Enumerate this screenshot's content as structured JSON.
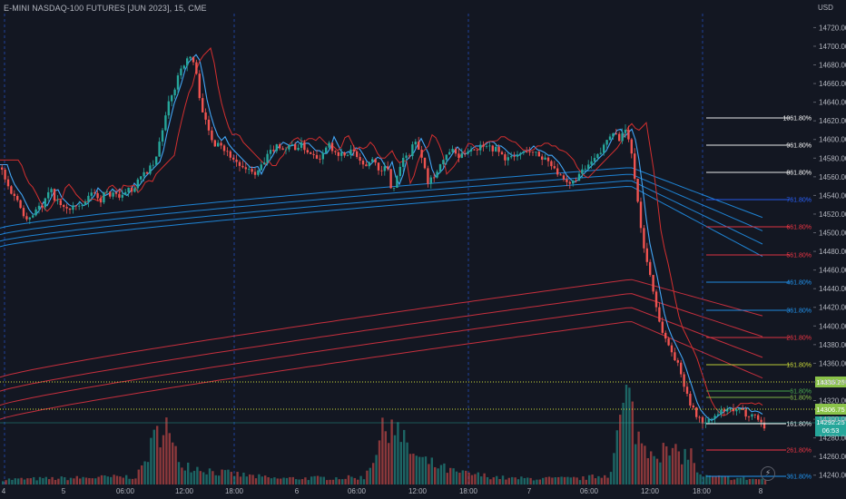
{
  "header": {
    "title": "E-MINI NASDAQ-100 FUTURES [JUN 2023], 15, CME",
    "currency": "USD"
  },
  "icons": {
    "replay": "lightning-icon"
  },
  "colors": {
    "background": "#131722",
    "up": "#26a69a",
    "down": "#ef5350",
    "blue_band": "#2196f3",
    "red_band": "#f23645",
    "grid_dash": "#2962ff",
    "price_pill": "#26a69a",
    "level_pill": "#8bc34a"
  },
  "chart_data": {
    "type": "candlestick",
    "title": "E-MINI NASDAQ-100 FUTURES [JUN 2023], 15, CME",
    "y_axis": {
      "unit": "USD",
      "range": [
        14230,
        14735
      ],
      "tick_labels": [
        "14240.00",
        "14260.00",
        "14280.00",
        "14300.00",
        "14320.00",
        "14340.00",
        "14360.00",
        "14380.00",
        "14400.00",
        "14420.00",
        "14440.00",
        "14460.00",
        "14480.00",
        "14500.00",
        "14520.00",
        "14540.00",
        "14560.00",
        "14580.00",
        "14600.00",
        "14620.00",
        "14640.00",
        "14660.00",
        "14680.00",
        "14700.00",
        "14720.00"
      ]
    },
    "x_axis": {
      "tick_labels": [
        "4",
        "5",
        "06:00",
        "12:00",
        "18:00",
        "6",
        "06:00",
        "12:00",
        "18:00",
        "7",
        "06:00",
        "12:00",
        "18:00",
        "8"
      ]
    },
    "price_path": [
      [
        0,
        14570
      ],
      [
        5,
        14555
      ],
      [
        10,
        14545
      ],
      [
        15,
        14540
      ],
      [
        20,
        14530
      ],
      [
        25,
        14520
      ],
      [
        30,
        14515
      ],
      [
        35,
        14520
      ],
      [
        40,
        14530
      ],
      [
        45,
        14525
      ],
      [
        50,
        14540
      ],
      [
        55,
        14545
      ],
      [
        60,
        14535
      ],
      [
        65,
        14530
      ],
      [
        70,
        14525
      ],
      [
        75,
        14525
      ],
      [
        80,
        14530
      ],
      [
        85,
        14525
      ],
      [
        90,
        14530
      ],
      [
        95,
        14535
      ],
      [
        100,
        14545
      ],
      [
        105,
        14540
      ],
      [
        110,
        14535
      ],
      [
        115,
        14545
      ],
      [
        120,
        14540
      ],
      [
        125,
        14545
      ],
      [
        130,
        14535
      ],
      [
        135,
        14540
      ],
      [
        140,
        14550
      ],
      [
        145,
        14545
      ],
      [
        150,
        14555
      ],
      [
        155,
        14560
      ],
      [
        160,
        14565
      ],
      [
        165,
        14570
      ],
      [
        170,
        14575
      ],
      [
        175,
        14600
      ],
      [
        180,
        14620
      ],
      [
        185,
        14640
      ],
      [
        190,
        14650
      ],
      [
        195,
        14670
      ],
      [
        200,
        14680
      ],
      [
        205,
        14685
      ],
      [
        210,
        14690
      ],
      [
        215,
        14670
      ],
      [
        218,
        14650
      ],
      [
        221,
        14635
      ],
      [
        225,
        14620
      ],
      [
        230,
        14605
      ],
      [
        235,
        14595
      ],
      [
        240,
        14600
      ],
      [
        245,
        14590
      ],
      [
        250,
        14585
      ],
      [
        255,
        14580
      ],
      [
        260,
        14575
      ],
      [
        265,
        14570
      ],
      [
        270,
        14565
      ],
      [
        275,
        14570
      ],
      [
        280,
        14560
      ],
      [
        285,
        14570
      ],
      [
        290,
        14575
      ],
      [
        295,
        14585
      ],
      [
        300,
        14590
      ],
      [
        305,
        14595
      ],
      [
        310,
        14590
      ],
      [
        315,
        14590
      ],
      [
        320,
        14595
      ],
      [
        325,
        14590
      ],
      [
        330,
        14595
      ],
      [
        335,
        14590
      ],
      [
        340,
        14585
      ],
      [
        345,
        14585
      ],
      [
        350,
        14580
      ],
      [
        355,
        14585
      ],
      [
        360,
        14600
      ],
      [
        365,
        14590
      ],
      [
        370,
        14580
      ],
      [
        375,
        14585
      ],
      [
        380,
        14580
      ],
      [
        385,
        14590
      ],
      [
        390,
        14585
      ],
      [
        395,
        14575
      ],
      [
        400,
        14570
      ],
      [
        405,
        14575
      ],
      [
        410,
        14580
      ],
      [
        415,
        14570
      ],
      [
        420,
        14565
      ],
      [
        425,
        14575
      ],
      [
        430,
        14545
      ],
      [
        435,
        14555
      ],
      [
        440,
        14575
      ],
      [
        445,
        14580
      ],
      [
        450,
        14585
      ],
      [
        455,
        14600
      ],
      [
        460,
        14590
      ],
      [
        465,
        14580
      ],
      [
        470,
        14555
      ],
      [
        475,
        14560
      ],
      [
        480,
        14565
      ],
      [
        485,
        14575
      ],
      [
        490,
        14580
      ],
      [
        495,
        14590
      ],
      [
        500,
        14585
      ],
      [
        505,
        14580
      ],
      [
        510,
        14585
      ],
      [
        515,
        14590
      ],
      [
        520,
        14590
      ],
      [
        525,
        14590
      ],
      [
        530,
        14595
      ],
      [
        535,
        14595
      ],
      [
        540,
        14590
      ],
      [
        545,
        14590
      ],
      [
        550,
        14585
      ],
      [
        555,
        14580
      ],
      [
        560,
        14580
      ],
      [
        565,
        14580
      ],
      [
        570,
        14585
      ],
      [
        575,
        14585
      ],
      [
        580,
        14590
      ],
      [
        585,
        14585
      ],
      [
        590,
        14585
      ],
      [
        595,
        14580
      ],
      [
        600,
        14580
      ],
      [
        605,
        14575
      ],
      [
        610,
        14570
      ],
      [
        615,
        14560
      ],
      [
        620,
        14555
      ],
      [
        625,
        14550
      ],
      [
        630,
        14555
      ],
      [
        635,
        14560
      ],
      [
        640,
        14565
      ],
      [
        645,
        14570
      ],
      [
        650,
        14575
      ],
      [
        655,
        14580
      ],
      [
        660,
        14585
      ],
      [
        665,
        14595
      ],
      [
        670,
        14605
      ],
      [
        675,
        14610
      ],
      [
        680,
        14600
      ],
      [
        685,
        14605
      ],
      [
        690,
        14610
      ],
      [
        693,
        14590
      ],
      [
        696,
        14575
      ],
      [
        700,
        14545
      ],
      [
        703,
        14520
      ],
      [
        706,
        14495
      ],
      [
        710,
        14475
      ],
      [
        715,
        14455
      ],
      [
        720,
        14430
      ],
      [
        725,
        14405
      ],
      [
        730,
        14390
      ],
      [
        735,
        14380
      ],
      [
        740,
        14370
      ],
      [
        745,
        14360
      ],
      [
        750,
        14345
      ],
      [
        755,
        14330
      ],
      [
        760,
        14315
      ],
      [
        765,
        14305
      ],
      [
        770,
        14300
      ],
      [
        775,
        14295
      ],
      [
        780,
        14298
      ],
      [
        785,
        14302
      ],
      [
        790,
        14305
      ],
      [
        795,
        14310
      ],
      [
        800,
        14308
      ],
      [
        805,
        14310
      ],
      [
        810,
        14308
      ],
      [
        815,
        14310
      ],
      [
        820,
        14305
      ],
      [
        825,
        14306
      ],
      [
        830,
        14304
      ],
      [
        835,
        14300
      ],
      [
        840,
        14292
      ]
    ],
    "current_price": "14292.25",
    "countdown": "06:53",
    "level_labels": [
      "14335.25",
      "14306.75"
    ],
    "fib_levels_left": [
      "1061.80%",
      "961.80%",
      "861.80%",
      "761.80%",
      "661.80%",
      "561.80%",
      "461.80%",
      "361.80%",
      "261.80%",
      "161.80%",
      "61.80%",
      "61.80%"
    ],
    "fib_levels_right": [
      "161.80%",
      "261.80%",
      "361.80%"
    ],
    "volume": {
      "description_in_data_units": "relative heights 0-1",
      "values_profile": [
        [
          0,
          0.05
        ],
        [
          60,
          0.06
        ],
        [
          150,
          0.08
        ],
        [
          175,
          0.55
        ],
        [
          180,
          0.75
        ],
        [
          185,
          0.45
        ],
        [
          195,
          0.25
        ],
        [
          210,
          0.18
        ],
        [
          240,
          0.12
        ],
        [
          300,
          0.06
        ],
        [
          400,
          0.07
        ],
        [
          430,
          0.7
        ],
        [
          440,
          0.45
        ],
        [
          460,
          0.25
        ],
        [
          500,
          0.12
        ],
        [
          560,
          0.06
        ],
        [
          640,
          0.06
        ],
        [
          670,
          0.1
        ],
        [
          690,
          0.95
        ],
        [
          695,
          0.7
        ],
        [
          705,
          0.4
        ],
        [
          740,
          0.3
        ],
        [
          760,
          0.3
        ],
        [
          770,
          0.08
        ],
        [
          840,
          0.05
        ]
      ]
    }
  }
}
